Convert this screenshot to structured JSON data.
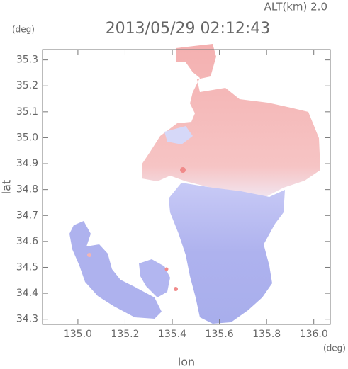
{
  "chart_data": {
    "type": "map",
    "title": "2013/05/29 02:12:43",
    "subtitle": "ALT(km) 2.0",
    "y_unit": "(deg)",
    "x_unit": "(deg)",
    "x_label": "lon",
    "y_label": "lat",
    "xlim": [
      134.85,
      136.07
    ],
    "ylim": [
      34.28,
      35.34
    ],
    "xticks": [
      {
        "value": 135.0,
        "label": "135.0"
      },
      135.2,
      135.4,
      135.6,
      135.8,
      {
        "value": 136.0,
        "label": "136.0"
      }
    ],
    "yticks": [
      34.3,
      34.4,
      34.5,
      34.6,
      34.7,
      34.8,
      34.9,
      {
        "value": 35.0,
        "label": "35.0"
      },
      35.1,
      35.2,
      35.3
    ]
  }
}
